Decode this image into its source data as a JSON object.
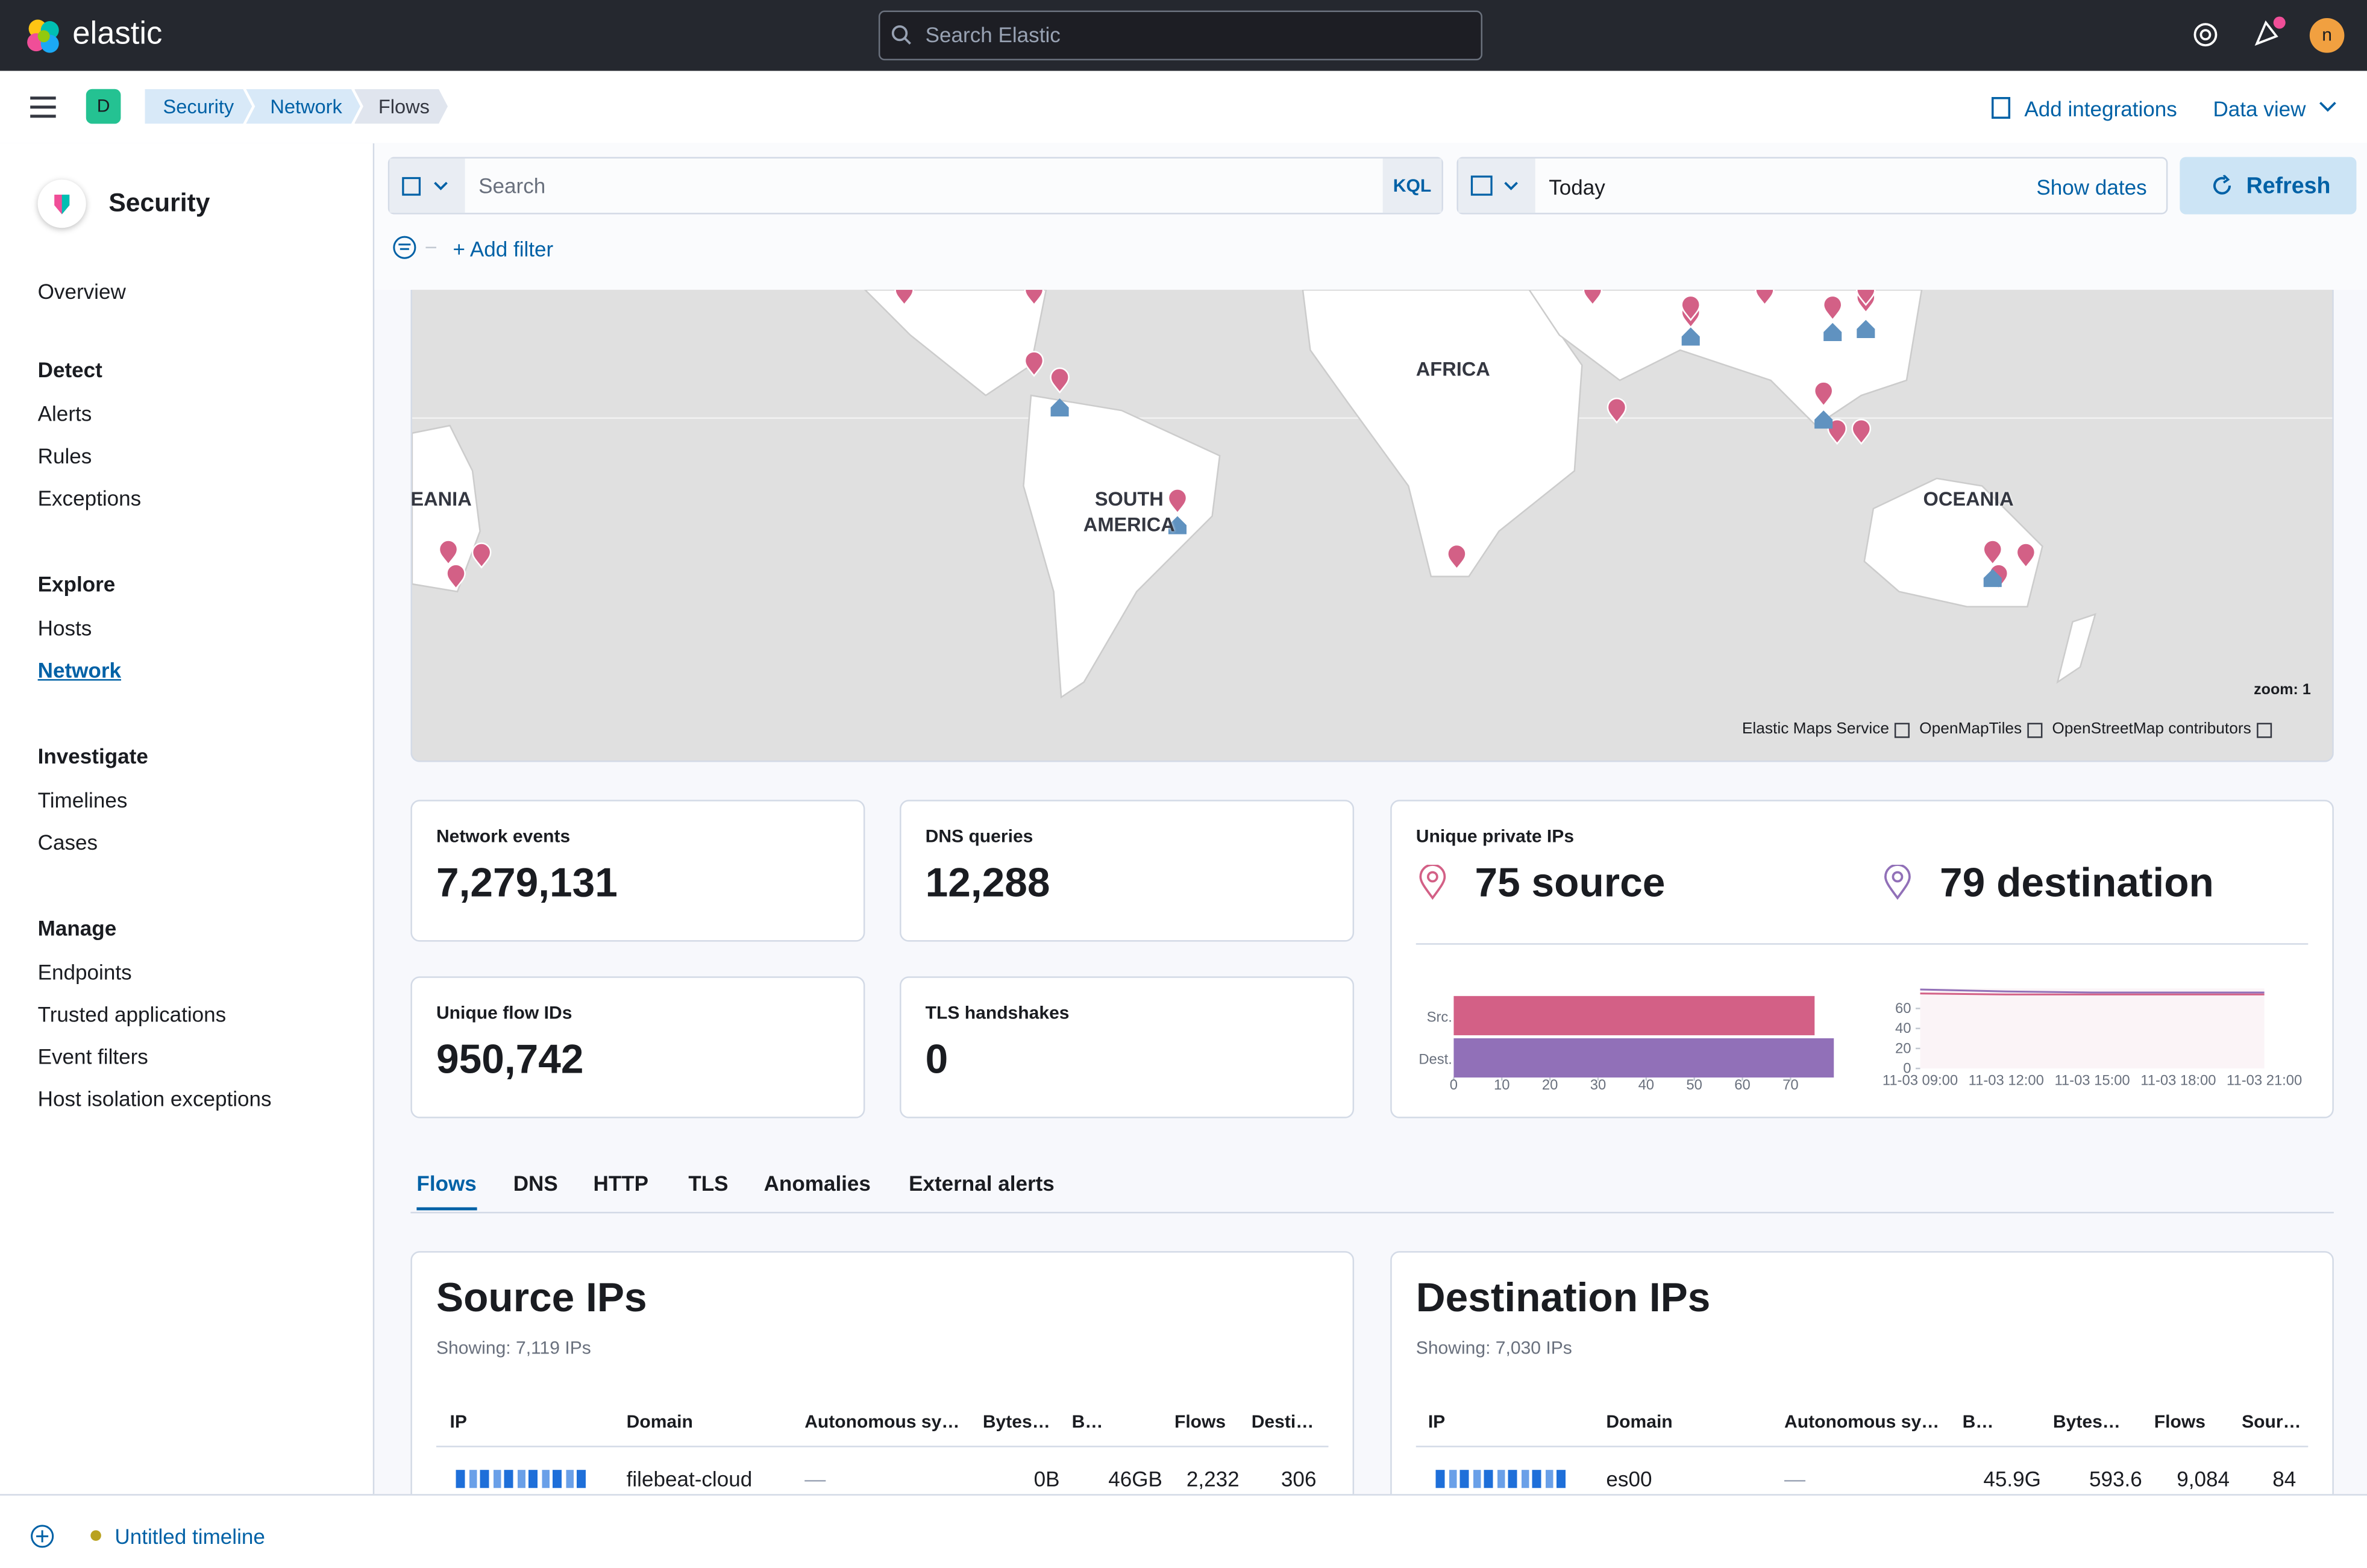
{
  "header": {
    "logo": "elastic",
    "search_placeholder": "Search Elastic",
    "avatar": "n"
  },
  "space_badge": "D",
  "breadcrumbs": [
    "Security",
    "Network",
    "Flows"
  ],
  "header_links": {
    "add_integrations": "Add integrations",
    "data_view": "Data view"
  },
  "sidebar": {
    "title": "Security",
    "overview": "Overview",
    "sections": [
      {
        "title": "Detect",
        "items": [
          "Alerts",
          "Rules",
          "Exceptions"
        ]
      },
      {
        "title": "Explore",
        "items": [
          "Hosts",
          "Network"
        ]
      },
      {
        "title": "Investigate",
        "items": [
          "Timelines",
          "Cases"
        ]
      },
      {
        "title": "Manage",
        "items": [
          "Endpoints",
          "Trusted applications",
          "Event filters",
          "Host isolation exceptions"
        ]
      }
    ]
  },
  "query_bar": {
    "search_placeholder": "Search",
    "language": "KQL",
    "date": "Today",
    "show_dates": "Show dates",
    "refresh": "Refresh",
    "add_filter": "+ Add filter"
  },
  "map": {
    "labels": [
      "EANIA",
      "AFRICA",
      "SOUTH AMERICA",
      "OCEANIA"
    ],
    "zoom": "zoom: 1",
    "attribution": [
      "Elastic Maps Service",
      "OpenMapTiles",
      "OpenStreetMap contributors"
    ]
  },
  "stats": [
    {
      "label": "Network events",
      "value": "7,279,131"
    },
    {
      "label": "DNS queries",
      "value": "12,288"
    },
    {
      "label": "Unique flow IDs",
      "value": "950,742"
    },
    {
      "label": "TLS handshakes",
      "value": "0"
    }
  ],
  "unique_ips": {
    "label": "Unique private IPs",
    "source": "75 source",
    "destination": "79 destination"
  },
  "chart_data": [
    {
      "type": "bar",
      "orientation": "horizontal",
      "categories": [
        "Src.",
        "Dest."
      ],
      "values": [
        75,
        79
      ],
      "colors": [
        "#d36086",
        "#9170b8"
      ],
      "xlim": [
        0,
        80
      ],
      "xticks": [
        0,
        10,
        20,
        30,
        40,
        50,
        60,
        70
      ]
    },
    {
      "type": "line",
      "x": [
        "11-03 09:00",
        "11-03 12:00",
        "11-03 15:00",
        "11-03 18:00",
        "11-03 21:00"
      ],
      "series": [
        {
          "color": "#d36086",
          "values": [
            75,
            74,
            74,
            74,
            74
          ]
        },
        {
          "color": "#9170b8",
          "values": [
            79,
            77,
            76,
            76,
            76
          ]
        }
      ],
      "ylim": [
        0,
        80
      ],
      "yticks": [
        0,
        20,
        40,
        60
      ]
    }
  ],
  "tabs": [
    "Flows",
    "DNS",
    "HTTP",
    "TLS",
    "Anomalies",
    "External alerts"
  ],
  "tables": [
    {
      "title": "Source IPs",
      "subtitle": "Showing: 7,119 IPs",
      "columns": [
        "IP",
        "Domain",
        "Autonomous sy…",
        "Bytes…",
        "B…",
        "Flows",
        "Desti…"
      ],
      "rows": [
        [
          "filebeat-cloud",
          "—",
          "0B",
          "46GB",
          "2,232",
          "306"
        ]
      ]
    },
    {
      "title": "Destination IPs",
      "subtitle": "Showing: 7,030 IPs",
      "columns": [
        "IP",
        "Domain",
        "Autonomous sy…",
        "B…",
        "Bytes…",
        "Flows",
        "Sour…"
      ],
      "rows": [
        [
          "es00",
          "—",
          "45.9G",
          "593.6",
          "9,084",
          "84"
        ]
      ]
    }
  ],
  "timeline": "Untitled timeline"
}
